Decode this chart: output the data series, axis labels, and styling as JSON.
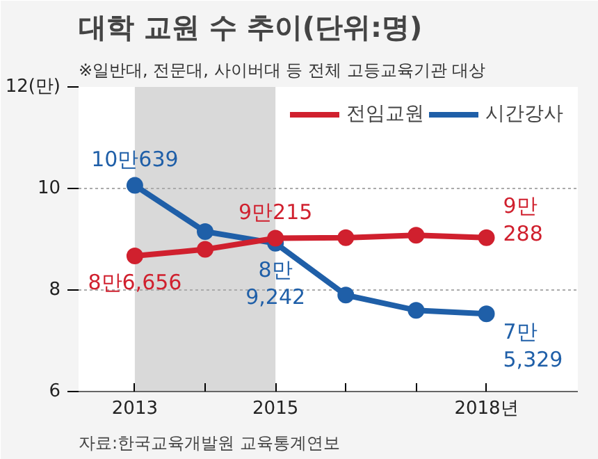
{
  "chart_data": {
    "type": "line",
    "title": "대학 교원 수 추이(단위:명)",
    "subtitle": "※일반대, 전문대, 사이버대 등 전체 고등교육기관 대상",
    "x": [
      2013,
      2014,
      2015,
      2016,
      2017,
      2018
    ],
    "series": [
      {
        "name": "전임교원",
        "color": "#d0202e",
        "values": [
          8.67,
          8.8,
          9.02,
          9.03,
          9.08,
          9.03
        ]
      },
      {
        "name": "시간강사",
        "color": "#1f5fa8",
        "values": [
          10.06,
          9.15,
          8.92,
          7.9,
          7.6,
          7.53
        ]
      }
    ],
    "bands": [
      {
        "axis": "x",
        "from": 2013,
        "to": 2015,
        "color": "#d9d9d9"
      }
    ],
    "xlim": [
      2012.2,
      2019.3
    ],
    "xticks": [
      2013,
      {
        "value": 2014,
        "label": null
      },
      2015,
      {
        "value": 2016,
        "label": null
      },
      {
        "value": 2017,
        "label": null
      },
      {
        "value": 2018,
        "label": "2018년"
      }
    ],
    "ylim": [
      6,
      12
    ],
    "yticks": [
      6,
      8,
      10,
      {
        "value": 12,
        "label": "12(만)"
      }
    ],
    "grid": "y",
    "legend": "top right",
    "marker": "circle",
    "line_style": "solid",
    "annotations": [
      "자료:한국교육개발원 교육통계연보",
      {
        "text": "8만6,656",
        "x": 2013,
        "y": 8.67
      },
      {
        "text": "9만215",
        "x": 2015,
        "y": 9.02
      },
      {
        "text": "9만\n288",
        "x": 2018,
        "y": 9.03
      },
      {
        "text": "10만639",
        "x": 2013,
        "y": 10.06
      },
      {
        "text": "8만\n9,242",
        "x": 2015,
        "y": 8.92
      },
      {
        "text": "7만\n5,329",
        "x": 2018,
        "y": 7.53
      }
    ]
  }
}
